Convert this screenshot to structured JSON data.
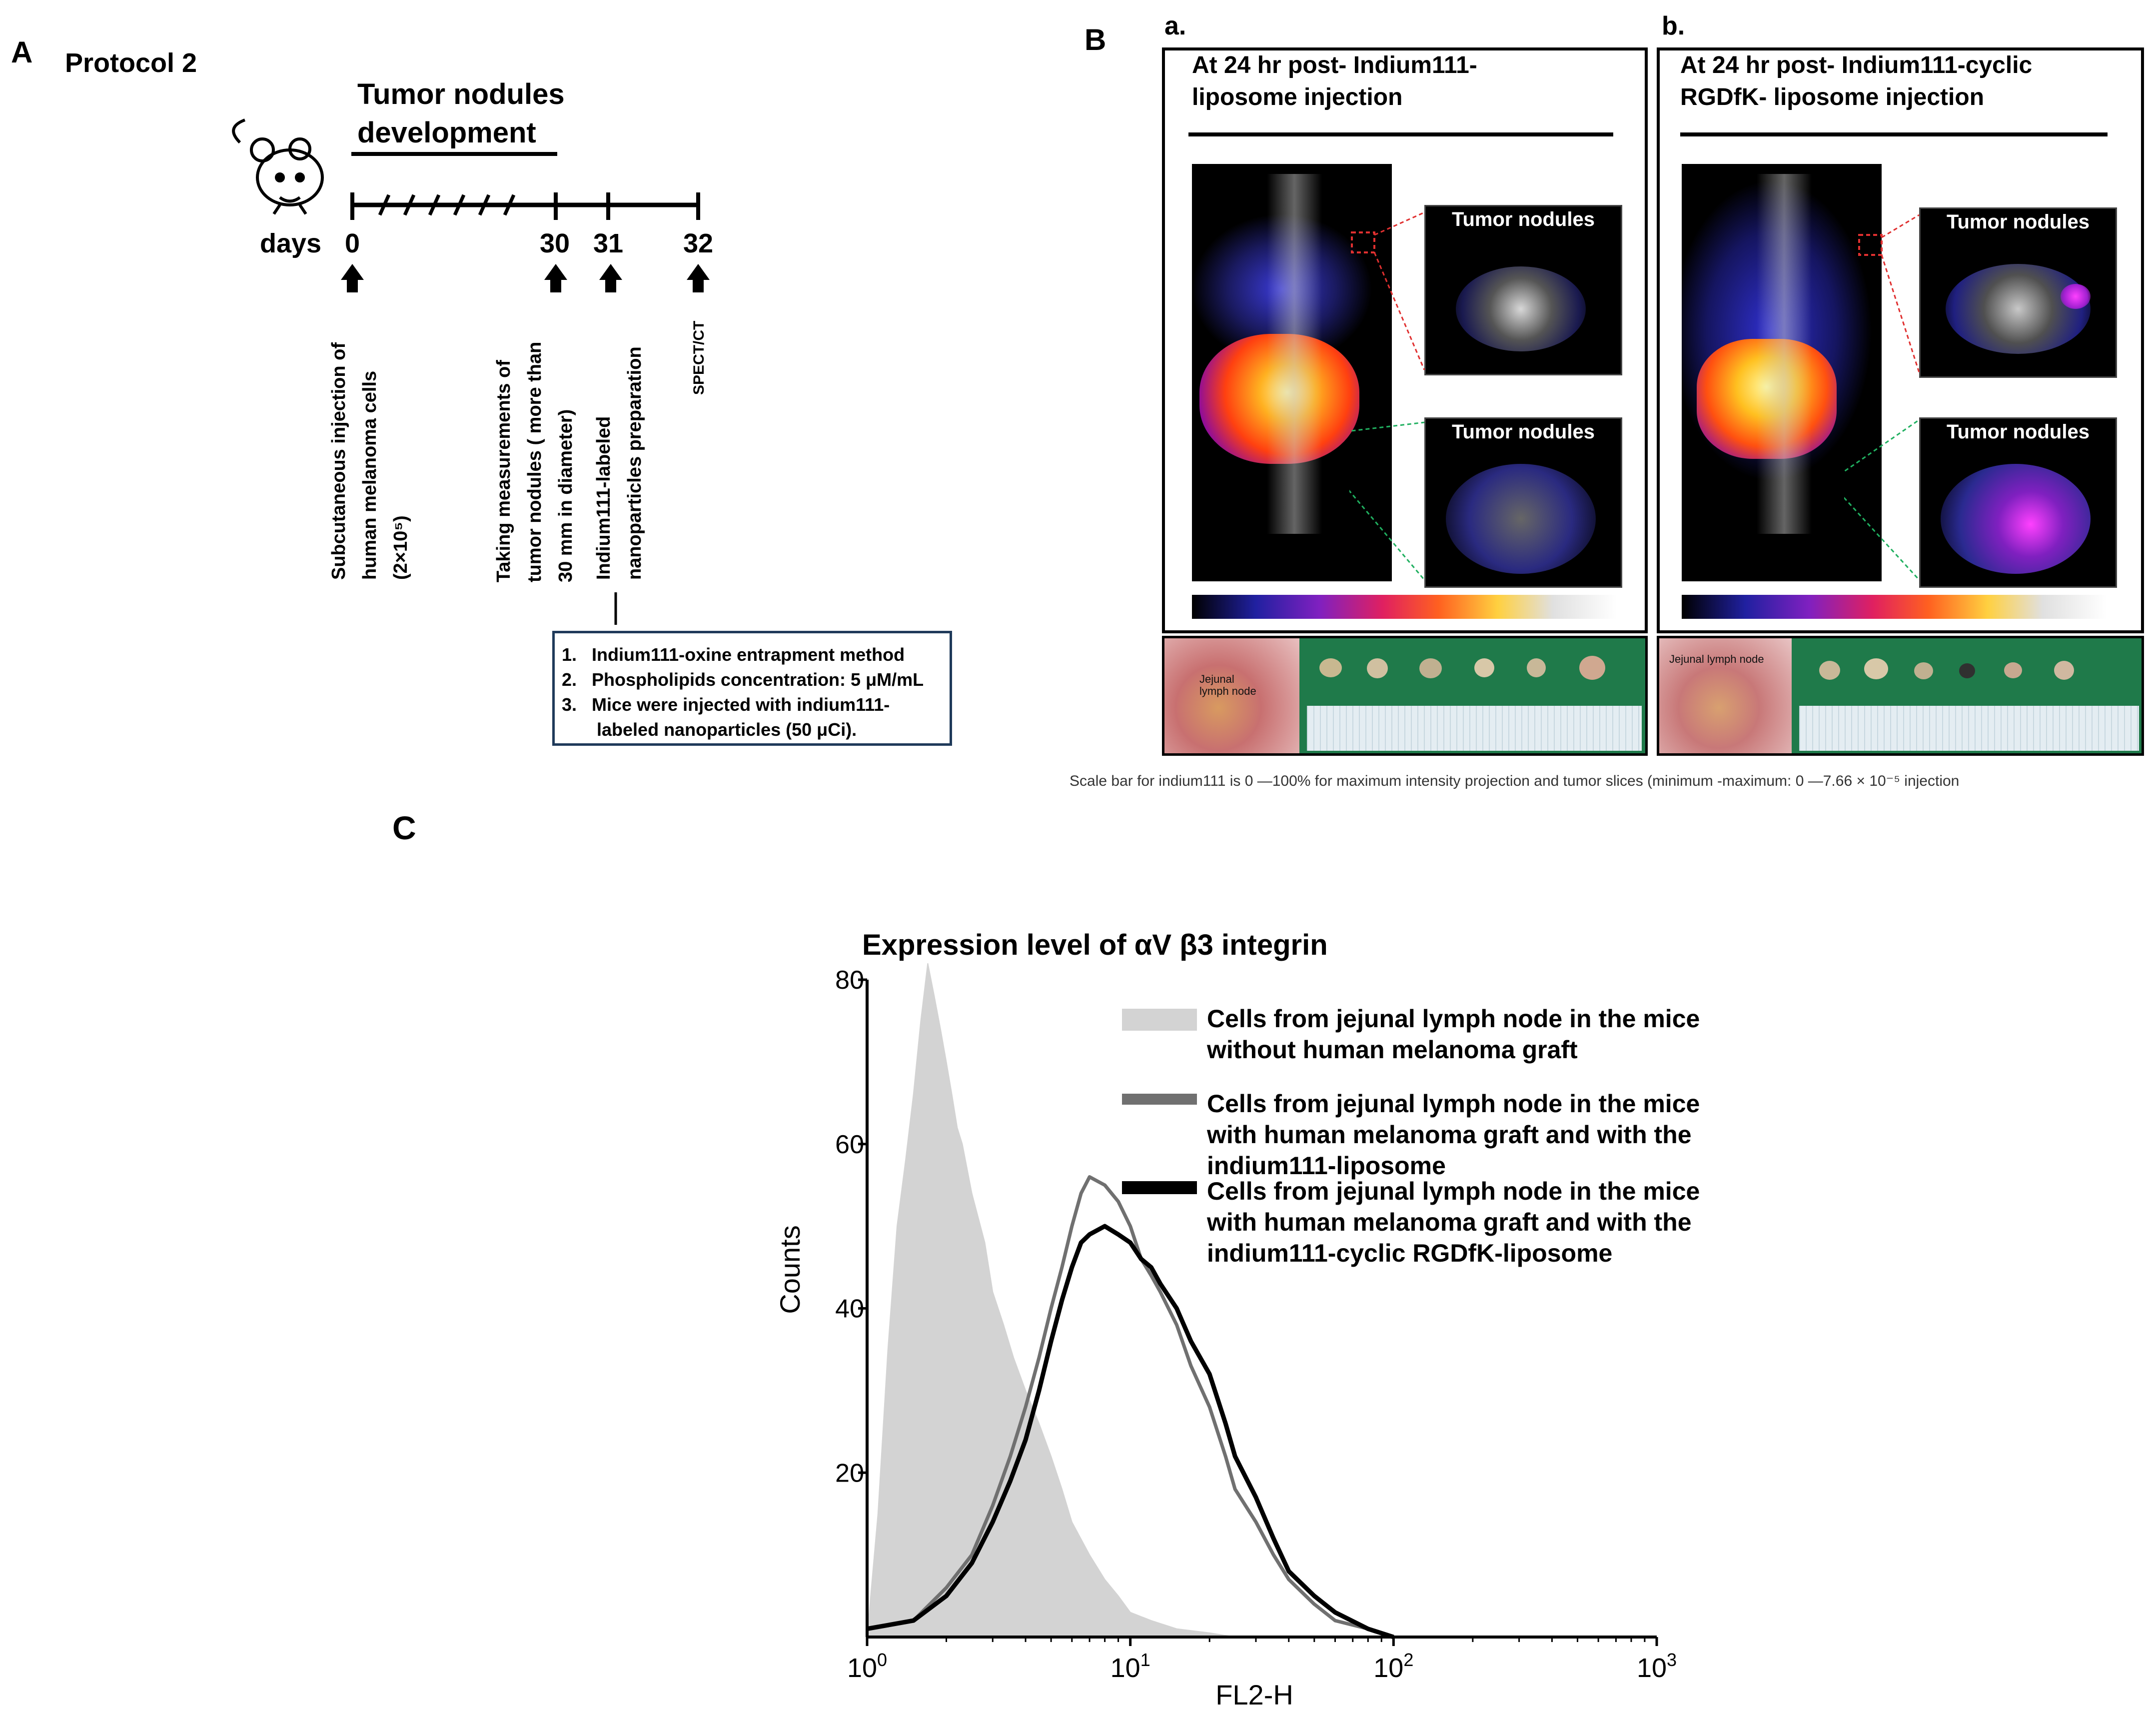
{
  "panel_a": {
    "label": "A",
    "protocol": "Protocol 2",
    "phase_title_1": "Tumor nodules",
    "phase_title_2": "development",
    "days_label": "days",
    "day_ticks": [
      "0",
      "30",
      "31",
      "32"
    ],
    "events": [
      {
        "lines": [
          "Subcutaneous injection of",
          "human melanoma cells",
          "(2×10⁵)"
        ]
      },
      {
        "lines": [
          "Taking measurements of",
          "tumor nodules ( more than",
          "30 mm in diameter)"
        ]
      },
      {
        "lines": [
          "Indium111-labeled",
          "nanoparticles preparation"
        ]
      },
      {
        "lines": [
          "SPECT/CT"
        ]
      }
    ],
    "box_items": [
      "1.   Indium111-oxine entrapment method",
      "2.   Phospholipids concentration: 5 μM/mL",
      "3.   Mice were injected with indium111-",
      "       labeled nanoparticles (50 μCi)."
    ]
  },
  "panel_b": {
    "label": "B",
    "sub_a": {
      "label": "a.",
      "title_1": "At 24 hr post- Indium111-",
      "title_2": "liposome injection",
      "tumor_label_1": "Tumor nodules",
      "tumor_label_2": "Tumor nodules",
      "photo_label": "Jejunal lymph node"
    },
    "sub_b": {
      "label": "b.",
      "title_1": "At 24 hr post- Indium111-cyclic",
      "title_2": "RGDfK- liposome injection",
      "tumor_label_1": "Tumor nodules",
      "tumor_label_2": "Tumor nodules",
      "photo_label": "Jejunal lymph node"
    },
    "caption": "Scale bar for indium111  is 0 —100% for maximum intensity projection and tumor slices (minimum -maximum: 0 —7.66 × 10⁻⁵ injection"
  },
  "panel_c": {
    "label": "C"
  },
  "chart_data": {
    "type": "area",
    "title": "Expression level of αV β3 integrin",
    "xlabel": "FL2-H",
    "ylabel": "Counts",
    "x_scale": "log",
    "xlim": [
      1,
      1000
    ],
    "ylim": [
      0,
      80
    ],
    "x_ticks": [
      {
        "base": "10",
        "exp": "0"
      },
      {
        "base": "10",
        "exp": "1"
      },
      {
        "base": "10",
        "exp": "2"
      },
      {
        "base": "10",
        "exp": "3"
      }
    ],
    "y_ticks": [
      "20",
      "40",
      "60",
      "80"
    ],
    "legend_position": "top-right",
    "series": [
      {
        "name": "Cells from jejunal lymph node in the mice without human melanoma graft",
        "legend_lines": [
          "Cells from jejunal lymph node in the mice",
          "without human melanoma graft"
        ],
        "color": "#d3d3d3",
        "style": "filled",
        "x": [
          1,
          1.1,
          1.2,
          1.3,
          1.4,
          1.5,
          1.6,
          1.7,
          1.8,
          1.9,
          2,
          2.1,
          2.2,
          2.3,
          2.5,
          2.8,
          3,
          3.3,
          3.6,
          4,
          4.5,
          5,
          5.5,
          6,
          7,
          8,
          9,
          10,
          12,
          15,
          20,
          25
        ],
        "y": [
          0,
          15,
          35,
          50,
          58,
          66,
          75,
          82,
          78,
          74,
          70,
          66,
          62,
          60,
          54,
          48,
          42,
          38,
          34,
          30,
          26,
          22,
          18,
          14,
          10,
          7,
          5,
          3,
          2,
          1,
          0.5,
          0
        ]
      },
      {
        "name": "Cells from jejunal lymph node in the mice with human melanoma graft and with the indium111-liposome",
        "legend_lines": [
          "Cells from jejunal lymph node in the mice",
          "with human melanoma graft and with the",
          "indium111-liposome"
        ],
        "color": "#707070",
        "style": "line",
        "x": [
          1,
          1.5,
          2,
          2.5,
          3,
          3.5,
          4,
          4.5,
          5,
          5.5,
          6,
          6.5,
          7,
          8,
          9,
          10,
          11,
          12,
          13,
          15,
          17,
          20,
          23,
          25,
          30,
          35,
          40,
          50,
          60,
          80,
          100
        ],
        "y": [
          1,
          2,
          6,
          10,
          16,
          22,
          28,
          34,
          40,
          45,
          50,
          54,
          56,
          55,
          53,
          50,
          46,
          44,
          42,
          38,
          33,
          28,
          22,
          18,
          14,
          10,
          7,
          4,
          2,
          1,
          0
        ]
      },
      {
        "name": "Cells from jejunal lymph node in the mice with human melanoma graft and with the indium111-cyclic RGDfK-liposome",
        "legend_lines": [
          "Cells from jejunal lymph node in the mice",
          "with human melanoma graft and with the",
          "indium111-cyclic RGDfK-liposome"
        ],
        "color": "#000000",
        "style": "line",
        "x": [
          1,
          1.5,
          2,
          2.5,
          3,
          3.5,
          4,
          4.5,
          5,
          5.5,
          6,
          6.5,
          7,
          8,
          9,
          10,
          11,
          12,
          13,
          15,
          17,
          20,
          23,
          25,
          30,
          35,
          40,
          50,
          60,
          80,
          100
        ],
        "y": [
          1,
          2,
          5,
          9,
          14,
          19,
          24,
          30,
          36,
          41,
          45,
          48,
          49,
          50,
          49,
          48,
          46,
          45,
          43,
          40,
          36,
          32,
          26,
          22,
          17,
          12,
          8,
          5,
          3,
          1,
          0
        ]
      }
    ]
  }
}
